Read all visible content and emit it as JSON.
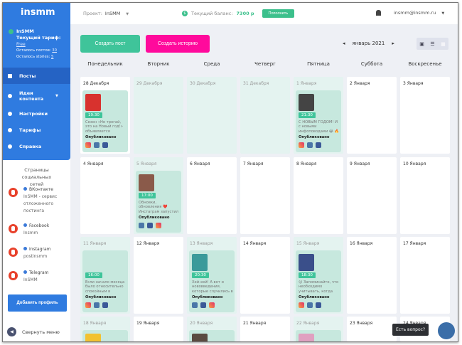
{
  "sidebar": {
    "logo": "insmm",
    "account": {
      "name": "InSMM",
      "plan_label": "Текущий тариф:",
      "plan": "Free",
      "posts_left_label": "Осталось постов:",
      "posts_left": "30",
      "stories_left_label": "Осталось stories:",
      "stories_left": "5"
    },
    "nav": [
      {
        "label": "Посты",
        "icon": "image-icon",
        "active": true
      },
      {
        "label": "Идеи контента",
        "icon": "idea-icon"
      },
      {
        "label": "Настройки",
        "icon": "gear-icon"
      },
      {
        "label": "Тарифы",
        "icon": "dollar-icon"
      },
      {
        "label": "Справка",
        "icon": "help-icon"
      }
    ],
    "social_title": "Страницы социальных сетей",
    "social": [
      {
        "network": "ВКонтакте",
        "name": "InSMM - сервис отложенного постинга"
      },
      {
        "network": "Facebook",
        "name": "Insmm"
      },
      {
        "network": "Instagram",
        "name": "postinsmm"
      },
      {
        "network": "Telegram",
        "name": "InSMM"
      }
    ],
    "add_profile": "Добавить профиль",
    "collapse": "Свернуть меню"
  },
  "header": {
    "project_label": "Проект:",
    "project": "InSMM",
    "balance_label": "Текущий баланс:",
    "balance": "7300 р",
    "topup": "Пополнить",
    "user": "insmm@insmm.ru"
  },
  "toolbar": {
    "create_post": "Создать пост",
    "create_story": "Создать историю",
    "month": "январь 2021",
    "prev": "◂",
    "next": "▸"
  },
  "weekdays": [
    "Понедельник",
    "Вторник",
    "Среда",
    "Четверг",
    "Пятница",
    "Суббота",
    "Воскресенье"
  ],
  "colors": {
    "primary": "#2f7be0",
    "accent": "#3fc49a",
    "story": "#ff0a9c"
  },
  "weeks": [
    [
      {
        "date": "28 Декабря",
        "past": false,
        "post": {
          "time": "19:30",
          "text": "Сезон «Не трогай, это на Новый год!» объявляется",
          "status": "Опубликовано",
          "networks": [
            "instagram",
            "vk",
            "facebook"
          ],
          "img": "#d8322e"
        }
      },
      {
        "date": "29 Декабря",
        "past": true
      },
      {
        "date": "30 Декабря",
        "past": true
      },
      {
        "date": "31 Декабря",
        "past": true
      },
      {
        "date": "1 Января",
        "past": true,
        "post": {
          "time": "21:30",
          "text": "С НОВЫМ ГОДОМ! И с новыми инфоповодами 😂 🔥",
          "status": "Опубликовано",
          "networks": [
            "instagram",
            "vk",
            "facebook"
          ],
          "img": "#444"
        }
      },
      {
        "date": "2 Января"
      },
      {
        "date": "3 Января"
      }
    ],
    [
      {
        "date": "4 Января"
      },
      {
        "date": "5 Января",
        "past": true,
        "post": {
          "time": "17:00",
          "text": "Обновки, обновления ❤️ Инстаграм запустил превью",
          "status": "Опубликовано",
          "networks": [
            "vk",
            "facebook",
            "instagram"
          ],
          "img": "#8a5a4a"
        }
      },
      {
        "date": "6 Января"
      },
      {
        "date": "7 Января"
      },
      {
        "date": "8 Января"
      },
      {
        "date": "9 Января"
      },
      {
        "date": "10 Января"
      }
    ],
    [
      {
        "date": "11 Января",
        "past": true,
        "post": {
          "time": "16:00",
          "text": "Если начало месяца было относительно спокойным в",
          "status": "Опубликовано",
          "networks": [
            "instagram",
            "vk",
            "facebook"
          ]
        }
      },
      {
        "date": "12 Января"
      },
      {
        "date": "13 Января",
        "past": true,
        "post": {
          "time": "20:30",
          "text": "Хей-хей! А вот и нововведения, которые случились в",
          "status": "Опубликовано",
          "networks": [
            "vk",
            "facebook",
            "instagram"
          ],
          "img": "#3a9a9a"
        }
      },
      {
        "date": "14 Января"
      },
      {
        "date": "15 Января",
        "past": true,
        "post": {
          "time": "18:30",
          "text": "😊 Запоминайте, что необходимо учитывать, когда",
          "status": "Опубликовано",
          "networks": [
            "instagram",
            "vk",
            "facebook"
          ],
          "img": "#3a4f8a"
        }
      },
      {
        "date": "16 Января"
      },
      {
        "date": "17 Января"
      }
    ],
    [
      {
        "date": "18 Января",
        "past": true,
        "post": {
          "img": "#f2c230"
        }
      },
      {
        "date": "19 Января"
      },
      {
        "date": "20 Января",
        "past": true,
        "post": {
          "img": "#5a4a40"
        }
      },
      {
        "date": "21 Января"
      },
      {
        "date": "22 Января",
        "past": true,
        "post": {
          "img": "#e0a0c0"
        }
      },
      {
        "date": "23 Января"
      },
      {
        "date": "24 Января"
      }
    ]
  ],
  "chat": {
    "tooltip": "Есть вопрос?"
  }
}
